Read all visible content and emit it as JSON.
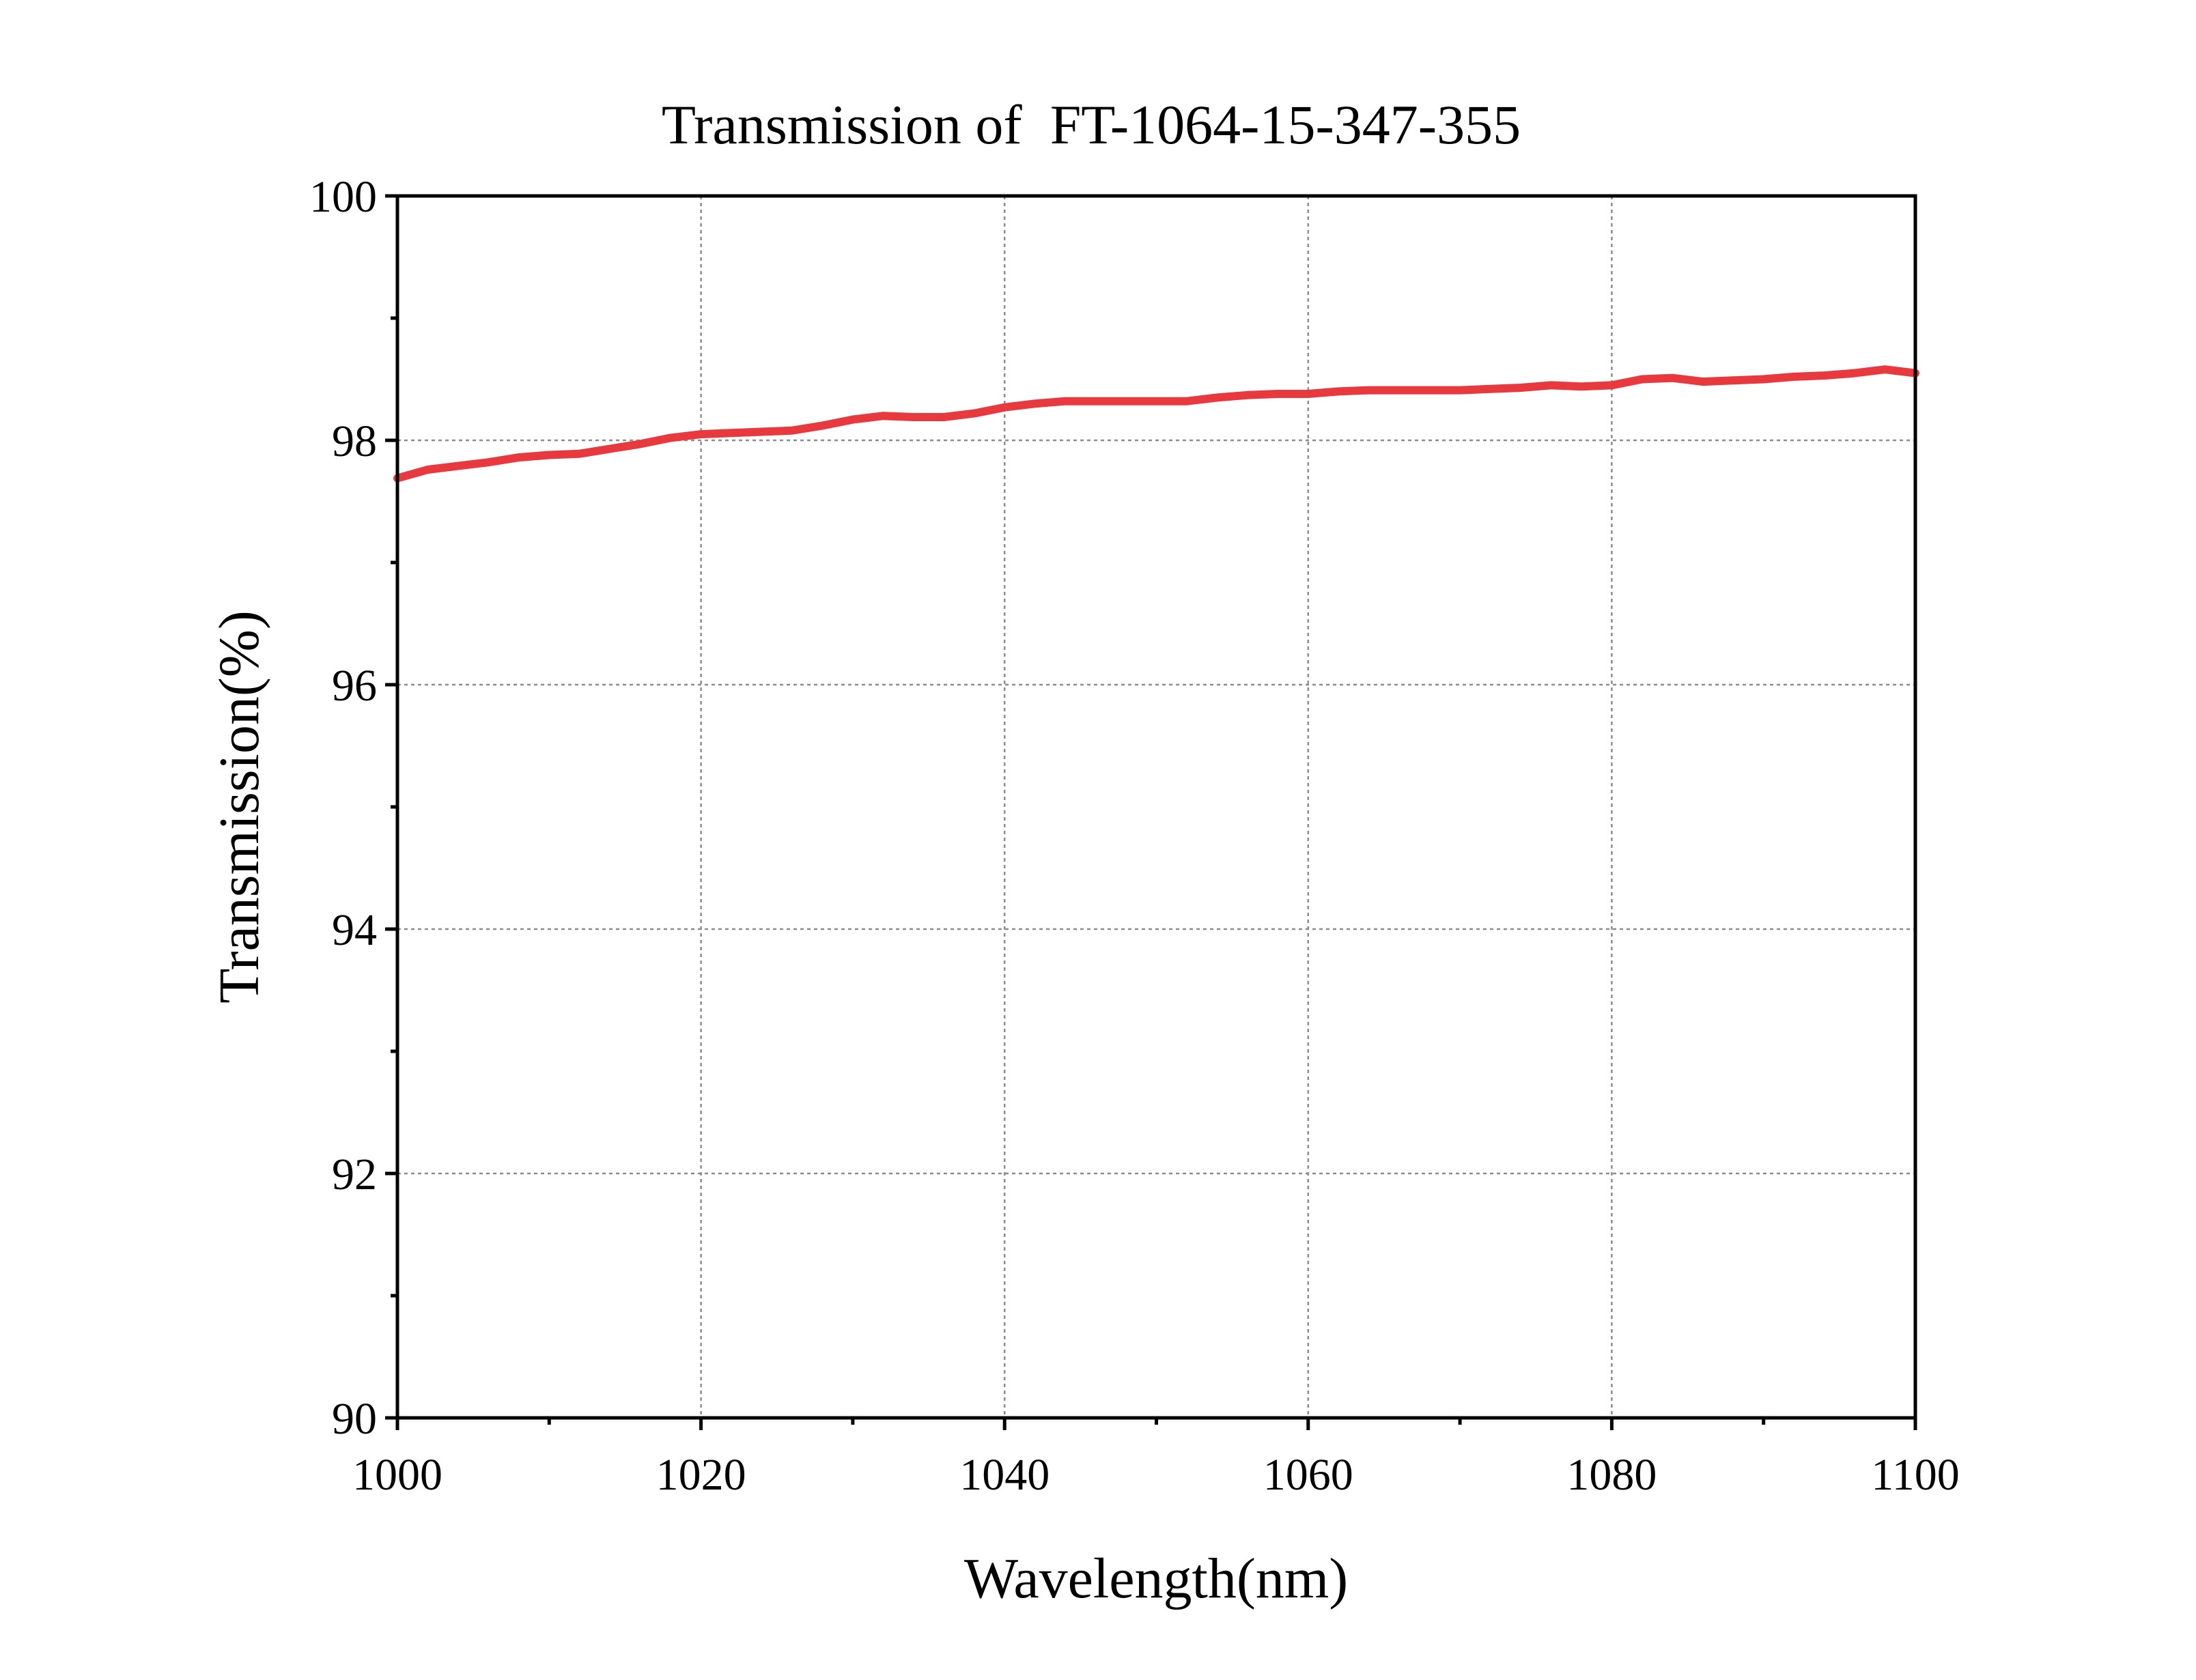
{
  "chart_data": {
    "type": "line",
    "title": "Transmission of  FT-1064-15-347-355",
    "xlabel": "Wavelength(nm)",
    "ylabel": "Transmission(%)",
    "xlim": [
      1000,
      1100
    ],
    "ylim": [
      90,
      100
    ],
    "x_ticks": [
      "1000",
      "1020",
      "1040",
      "1060",
      "1080",
      "1100"
    ],
    "y_ticks": [
      "90",
      "92",
      "94",
      "96",
      "98",
      "100"
    ],
    "grid": true,
    "colors": {
      "series": "#e8393f",
      "frame": "#000000",
      "grid": "#8c8c8c"
    },
    "series": [
      {
        "x": [
          1000,
          1002,
          1004,
          1006,
          1008,
          1010,
          1012,
          1014,
          1016,
          1018,
          1020,
          1022,
          1024,
          1026,
          1028,
          1030,
          1032,
          1034,
          1036,
          1038,
          1040,
          1042,
          1044,
          1046,
          1048,
          1050,
          1052,
          1054,
          1056,
          1058,
          1060,
          1062,
          1064,
          1066,
          1068,
          1070,
          1072,
          1074,
          1076,
          1078,
          1080,
          1082,
          1084,
          1086,
          1088,
          1090,
          1092,
          1094,
          1096,
          1098,
          1100
        ],
        "y": [
          97.69,
          97.76,
          97.79,
          97.82,
          97.86,
          97.88,
          97.89,
          97.93,
          97.97,
          98.02,
          98.05,
          98.06,
          98.07,
          98.08,
          98.12,
          98.17,
          98.2,
          98.19,
          98.19,
          98.22,
          98.27,
          98.3,
          98.32,
          98.32,
          98.32,
          98.32,
          98.32,
          98.35,
          98.37,
          98.38,
          98.38,
          98.4,
          98.41,
          98.41,
          98.41,
          98.41,
          98.42,
          98.43,
          98.45,
          98.44,
          98.45,
          98.5,
          98.51,
          98.48,
          98.49,
          98.5,
          98.52,
          98.53,
          98.55,
          98.58,
          98.55
        ]
      }
    ]
  }
}
